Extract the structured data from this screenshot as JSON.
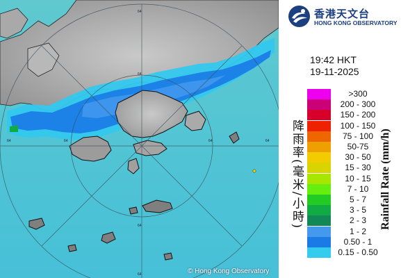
{
  "map": {
    "copyright": "© Hong Kong Observatory",
    "range_ring_labels": [
      "64",
      "64",
      "64",
      "64",
      "64",
      "64",
      "64",
      "64"
    ]
  },
  "header": {
    "logo_cn": "香港天文台",
    "logo_en": "HONG KONG OBSERVATORY"
  },
  "timestamp": {
    "time": "19:42 HKT",
    "date": "19-11-2025"
  },
  "legend": {
    "title_cn": "降雨率(毫米/小時)",
    "title_en": "Rainfall Rate (mm/h)",
    "items": [
      {
        "label": ">300",
        "color": "#ee00ee"
      },
      {
        "label": "200 - 300",
        "color": "#cc0077"
      },
      {
        "label": "150 - 200",
        "color": "#d8002a"
      },
      {
        "label": "100 - 150",
        "color": "#ee2200"
      },
      {
        "label": "75 - 100",
        "color": "#ee6600"
      },
      {
        "label": "50-75",
        "color": "#eea000"
      },
      {
        "label": "30 - 50",
        "color": "#f2cc00"
      },
      {
        "label": "15 - 30",
        "color": "#d8d400"
      },
      {
        "label": "10 - 15",
        "color": "#a6e600"
      },
      {
        "label": "7 - 10",
        "color": "#66ee11"
      },
      {
        "label": "5 - 7",
        "color": "#22cc22"
      },
      {
        "label": "3 - 5",
        "color": "#11aa44"
      },
      {
        "label": "2 - 3",
        "color": "#118855"
      },
      {
        "label": "1 - 2",
        "color": "#4499ee"
      },
      {
        "label": "0.50 - 1",
        "color": "#1a7ae6"
      },
      {
        "label": "0.15 - 0.50",
        "color": "#33ccee"
      }
    ]
  }
}
